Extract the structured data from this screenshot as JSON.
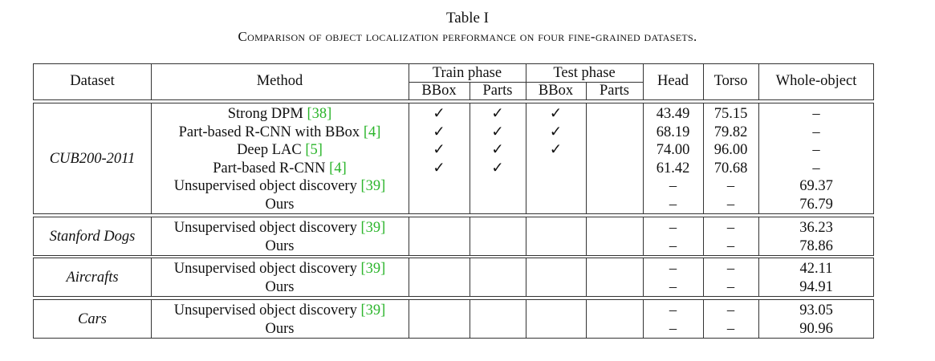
{
  "caption": {
    "title": "Table I",
    "subtitle": "Comparison of object localization performance on four fine-grained datasets."
  },
  "header": {
    "dataset": "Dataset",
    "method": "Method",
    "train_phase": "Train phase",
    "test_phase": "Test phase",
    "bbox": "BBox",
    "parts": "Parts",
    "head": "Head",
    "torso": "Torso",
    "whole_object": "Whole-object"
  },
  "groups": [
    {
      "dataset": "CUB200-2011",
      "rows": [
        {
          "method": "Strong DPM ",
          "ref": "[38]",
          "ref_close": "",
          "train_bbox": "✓",
          "train_parts": "✓",
          "test_bbox": "✓",
          "test_parts": "",
          "head": "43.49",
          "torso": "75.15",
          "whole": "–"
        },
        {
          "method": "Part-based R-CNN with BBox ",
          "ref": "[4]",
          "train_bbox": "✓",
          "train_parts": "✓",
          "test_bbox": "✓",
          "test_parts": "",
          "head": "68.19",
          "torso": "79.82",
          "whole": "–"
        },
        {
          "method": "Deep LAC ",
          "ref": "[5]",
          "train_bbox": "✓",
          "train_parts": "✓",
          "test_bbox": "✓",
          "test_parts": "",
          "head": "74.00",
          "torso": "96.00",
          "whole": "–"
        },
        {
          "method": "Part-based R-CNN ",
          "ref": "[4]",
          "train_bbox": "✓",
          "train_parts": "✓",
          "test_bbox": "",
          "test_parts": "",
          "head": "61.42",
          "torso": "70.68",
          "whole": "–"
        },
        {
          "method": "Unsupervised object discovery ",
          "ref": "[39]",
          "train_bbox": "",
          "train_parts": "",
          "test_bbox": "",
          "test_parts": "",
          "head": "–",
          "torso": "–",
          "whole": "69.37"
        },
        {
          "method": "Ours",
          "ref": "",
          "train_bbox": "",
          "train_parts": "",
          "test_bbox": "",
          "test_parts": "",
          "head": "–",
          "torso": "–",
          "whole": "76.79"
        }
      ]
    },
    {
      "dataset": "Stanford Dogs",
      "rows": [
        {
          "method": "Unsupervised object discovery ",
          "ref": "[39]",
          "train_bbox": "",
          "train_parts": "",
          "test_bbox": "",
          "test_parts": "",
          "head": "–",
          "torso": "–",
          "whole": "36.23"
        },
        {
          "method": "Ours",
          "ref": "",
          "train_bbox": "",
          "train_parts": "",
          "test_bbox": "",
          "test_parts": "",
          "head": "–",
          "torso": "–",
          "whole": "78.86"
        }
      ]
    },
    {
      "dataset": "Aircrafts",
      "rows": [
        {
          "method": "Unsupervised object discovery ",
          "ref": "[39]",
          "train_bbox": "",
          "train_parts": "",
          "test_bbox": "",
          "test_parts": "",
          "head": "–",
          "torso": "–",
          "whole": "42.11"
        },
        {
          "method": "Ours",
          "ref": "",
          "train_bbox": "",
          "train_parts": "",
          "test_bbox": "",
          "test_parts": "",
          "head": "–",
          "torso": "–",
          "whole": "94.91"
        }
      ]
    },
    {
      "dataset": "Cars",
      "rows": [
        {
          "method": "Unsupervised object discovery ",
          "ref": "[39]",
          "train_bbox": "",
          "train_parts": "",
          "test_bbox": "",
          "test_parts": "",
          "head": "–",
          "torso": "–",
          "whole": "93.05"
        },
        {
          "method": "Ours",
          "ref": "",
          "train_bbox": "",
          "train_parts": "",
          "test_bbox": "",
          "test_parts": "",
          "head": "–",
          "torso": "–",
          "whole": "90.96"
        }
      ]
    }
  ],
  "colors": {
    "citation": "#2bb52b",
    "rule": "#333333",
    "text": "#111111"
  }
}
